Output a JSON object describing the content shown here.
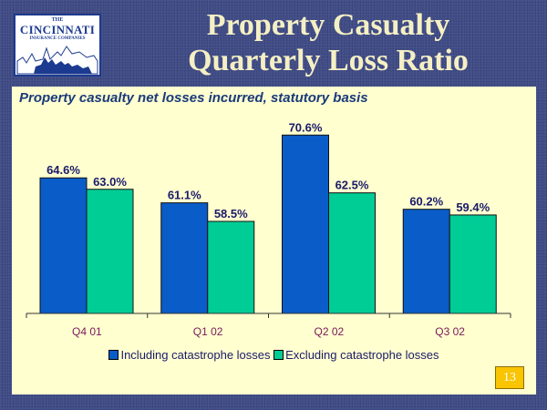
{
  "logo": {
    "line1": "THE",
    "line2": "CINCINNATI",
    "line3": "INSURANCE COMPANIES"
  },
  "title": {
    "line1": "Property Casualty",
    "line2": "Quarterly Loss Ratio"
  },
  "page_number": "13",
  "colors": {
    "including": "#0a5cc8",
    "excluding": "#00cc96",
    "label": "#1a1a6a",
    "xtick": "#7a1a5a"
  },
  "chart_data": {
    "type": "bar",
    "title": "Property casualty net losses incurred, statutory basis",
    "xlabel": "",
    "ylabel": "",
    "categories": [
      "Q4 01",
      "Q1 02",
      "Q2 02",
      "Q3 02"
    ],
    "series": [
      {
        "name": "Including catastrophe losses",
        "values": [
          64.6,
          61.1,
          70.6,
          60.2
        ],
        "labels": [
          "64.6%",
          "61.1%",
          "70.6%",
          "60.2%"
        ]
      },
      {
        "name": "Excluding catastrophe losses",
        "values": [
          63.0,
          58.5,
          62.5,
          59.4
        ],
        "labels": [
          "63.0%",
          "58.5%",
          "62.5%",
          "59.4%"
        ]
      }
    ],
    "ylim": [
      45.6,
      72
    ],
    "grid": false,
    "legend_position": "bottom"
  }
}
